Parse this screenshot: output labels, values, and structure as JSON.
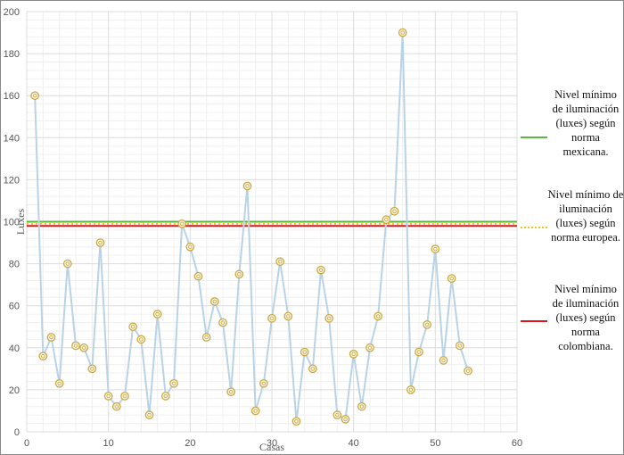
{
  "chart_data": {
    "type": "line",
    "xlabel": "Casas",
    "ylabel": "Luxes",
    "xlim": [
      0,
      60
    ],
    "ylim": [
      0,
      200
    ],
    "x_ticks": [
      0,
      10,
      20,
      30,
      40,
      50,
      60
    ],
    "y_ticks": [
      0,
      20,
      40,
      60,
      80,
      100,
      120,
      140,
      160,
      180,
      200
    ],
    "grid": true,
    "x": [
      1,
      2,
      3,
      4,
      5,
      6,
      7,
      8,
      9,
      10,
      11,
      12,
      13,
      14,
      15,
      16,
      17,
      18,
      19,
      20,
      21,
      22,
      23,
      24,
      25,
      26,
      27,
      28,
      29,
      30,
      31,
      32,
      33,
      34,
      35,
      36,
      37,
      38,
      39,
      40,
      41,
      42,
      43,
      44,
      45,
      46,
      47,
      48,
      49,
      50,
      51,
      52,
      53,
      54
    ],
    "values": [
      160,
      36,
      45,
      23,
      80,
      41,
      40,
      30,
      90,
      17,
      12,
      17,
      50,
      44,
      8,
      56,
      17,
      23,
      99,
      88,
      74,
      45,
      62,
      52,
      19,
      75,
      117,
      10,
      23,
      54,
      81,
      55,
      5,
      38,
      30,
      77,
      54,
      8,
      6,
      37,
      12,
      40,
      55,
      101,
      105,
      190,
      20,
      38,
      51,
      87,
      34,
      73,
      41,
      29
    ],
    "series_color": "#b9d3e6",
    "marker_color": "#c8a845",
    "reference_lines": [
      {
        "value": 100,
        "color": "#5cb646",
        "style": "solid",
        "label": "Nivel mínimo de iluminación (luxes) según norma mexicana."
      },
      {
        "value": 99,
        "color": "#f2c21b",
        "style": "dotted",
        "label": "Nivel mínimo de iluminación (luxes) según norma europea."
      },
      {
        "value": 98,
        "color": "#e0161b",
        "style": "solid",
        "label": "Nivel mínimo de iluminación (luxes) según norma colombiana."
      }
    ],
    "legend_position": "right"
  }
}
